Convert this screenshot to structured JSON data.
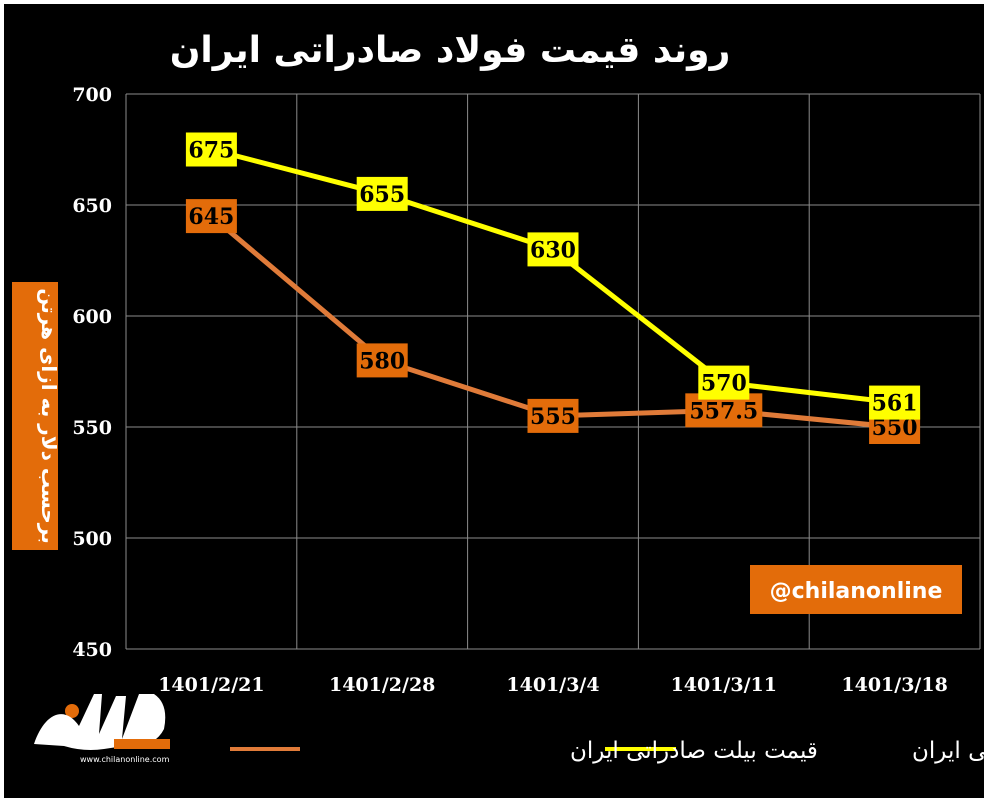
{
  "chart_data": {
    "type": "line",
    "title": "روند قیمت فولاد صادراتی ایران",
    "ylabel": "برحسب دلار به ازای هرتن",
    "xlabel": "",
    "categories": [
      "1401/2/21",
      "1401/2/28",
      "1401/3/4",
      "1401/3/11",
      "1401/3/18"
    ],
    "ylim": [
      450,
      700
    ],
    "yticks": [
      450,
      500,
      550,
      600,
      650,
      700
    ],
    "grid": true,
    "legend_position": "bottom",
    "series": [
      {
        "name": "قیمت اسلب صادراتی ایران",
        "values": [
          675,
          655,
          630,
          570,
          561
        ],
        "labels": [
          "675",
          "655",
          "630",
          "570",
          "561"
        ],
        "color": "#ffff00",
        "label_bg": "#ffff00"
      },
      {
        "name": "قیمت بیلت صادراتی ایران",
        "values": [
          645,
          580,
          555,
          557.5,
          550
        ],
        "labels": [
          "645",
          "580",
          "555",
          "557.5",
          "550"
        ],
        "color": "#e07b39",
        "label_bg": "#e36c0a"
      }
    ]
  },
  "watermark": "@chilanonline",
  "logo": {
    "small_text": "www.chilanonline.com"
  },
  "colors": {
    "background": "#000000",
    "grid": "#8c8c8c",
    "accent_orange": "#e36c0a"
  }
}
